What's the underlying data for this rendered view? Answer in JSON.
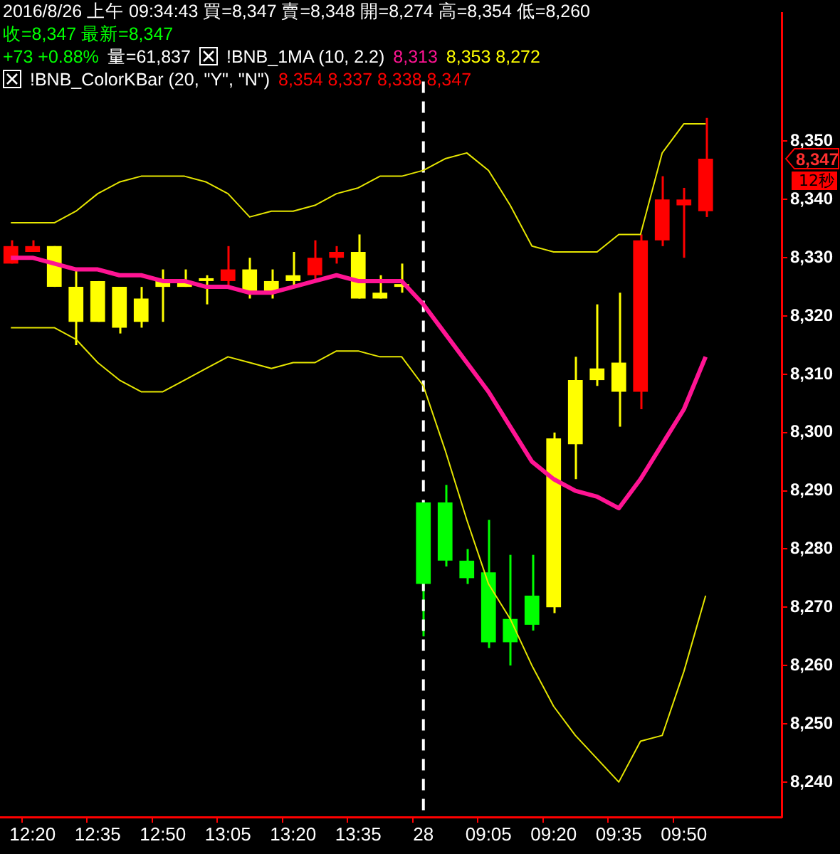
{
  "chart_data": {
    "type": "candlestick",
    "categories": [
      null,
      "12:20",
      null,
      null,
      "12:35",
      null,
      null,
      "12:50",
      null,
      null,
      "13:05",
      null,
      null,
      "13:20",
      null,
      null,
      "13:35",
      null,
      null,
      "28",
      null,
      null,
      "09:05",
      null,
      null,
      "09:20",
      null,
      null,
      "09:35",
      null,
      null,
      "09:50",
      null,
      null,
      null,
      null
    ],
    "ohlc": [
      [
        8329,
        8333,
        8329,
        8332
      ],
      [
        8331,
        8333,
        8331,
        8332
      ],
      [
        8325,
        8332,
        8325,
        8332
      ],
      [
        8319,
        8328,
        8315,
        8325
      ],
      [
        8319,
        8326,
        8319,
        8326
      ],
      [
        8318,
        8325,
        8317,
        8325
      ],
      [
        8319,
        8325,
        8318,
        8323
      ],
      [
        8325,
        8328,
        8319,
        8326
      ],
      [
        8325,
        8328,
        8325,
        8326
      ],
      [
        8326,
        8327,
        8322,
        8326
      ],
      [
        8326,
        8332,
        8325,
        8328
      ],
      [
        8324,
        8330,
        8323,
        8328
      ],
      [
        8324,
        8328,
        8323,
        8326
      ],
      [
        8326,
        8331,
        8325,
        8327
      ],
      [
        8327,
        8333,
        8326,
        8330
      ],
      [
        8330,
        8332,
        8329,
        8331
      ],
      [
        8323,
        8334,
        8323,
        8331
      ],
      [
        8323,
        8327,
        8323,
        8324
      ],
      [
        8325,
        8329,
        8324,
        8325
      ],
      [
        8288,
        8288,
        8265,
        8274
      ],
      [
        8288,
        8291,
        8277,
        8278
      ],
      [
        8278,
        8280,
        8274,
        8275
      ],
      [
        8276,
        8285,
        8263,
        8264
      ],
      [
        8268,
        8279,
        8260,
        8264
      ],
      [
        8272,
        8279,
        8266,
        8267
      ],
      [
        8270,
        8300,
        8269,
        8299
      ],
      [
        8298,
        8313,
        8292,
        8309
      ],
      [
        8309,
        8322,
        8308,
        8311
      ],
      [
        8307,
        8324,
        8301,
        8312
      ],
      [
        8307,
        8334,
        8304,
        8333
      ],
      [
        8333,
        8344,
        8332,
        8340
      ],
      [
        8339,
        8342,
        8330,
        8340
      ],
      [
        8338,
        8354,
        8337,
        8347
      ],
      null,
      null,
      null
    ],
    "colors": [
      "#ff0000",
      "#ff0000",
      "#ffff00",
      "#ffff00",
      "#ffff00",
      "#ffff00",
      "#ffff00",
      "#ffff00",
      "#ffff00",
      "#ffff00",
      "#ff0000",
      "#ffff00",
      "#ffff00",
      "#ffff00",
      "#ff0000",
      "#ff0000",
      "#ffff00",
      "#ffff00",
      "#ffff00",
      "#00ff00",
      "#00ff00",
      "#00ff00",
      "#00ff00",
      "#00ff00",
      "#00ff00",
      "#ffff00",
      "#ffff00",
      "#ffff00",
      "#ffff00",
      "#ff0000",
      "#ff0000",
      "#ff0000",
      "#ff0000",
      null,
      null,
      null
    ],
    "series": [
      {
        "type": "line",
        "color": "#ff1493",
        "values": [
          8330,
          8330,
          8329,
          8328,
          8328,
          8327,
          8327,
          8326,
          8326,
          8325,
          8325,
          8324,
          8324,
          8325,
          8326,
          8327,
          8326,
          8326,
          8326,
          8322,
          8317,
          8312,
          8307,
          8301,
          8295,
          8292,
          8290,
          8289,
          8287,
          8292,
          8298,
          8304,
          8313,
          null,
          null,
          null
        ]
      },
      {
        "type": "line",
        "color": "#e6e600",
        "values": [
          8336,
          8336,
          8336,
          8338,
          8341,
          8343,
          8344,
          8344,
          8344,
          8343,
          8341,
          8337,
          8338,
          8338,
          8339,
          8341,
          8342,
          8344,
          8344,
          8345,
          8347,
          8348,
          8345,
          8339,
          8332,
          8331,
          8331,
          8331,
          8334,
          8334,
          8348,
          8353,
          8353,
          null,
          null,
          null
        ]
      },
      {
        "type": "line",
        "color": "#e6e600",
        "values": [
          8318,
          8318,
          8318,
          8316,
          8312,
          8309,
          8307,
          8307,
          8309,
          8311,
          8313,
          8312,
          8311,
          8312,
          8312,
          8314,
          8314,
          8313,
          8313,
          8308,
          8297,
          8285,
          8274,
          8268,
          8260,
          8253,
          8248,
          8244,
          8240,
          8247,
          8248,
          8259,
          8272,
          null,
          null,
          null
        ]
      }
    ],
    "ylim": [
      8234,
      8372
    ],
    "yticks": [
      {
        "value": 8240,
        "label": "8,240"
      },
      {
        "value": 8250,
        "label": "8,250"
      },
      {
        "value": 8260,
        "label": "8,260"
      },
      {
        "value": 8270,
        "label": "8,270"
      },
      {
        "value": 8280,
        "label": "8,280"
      },
      {
        "value": 8290,
        "label": "8,290"
      },
      {
        "value": 8300,
        "label": "8,300"
      },
      {
        "value": 8310,
        "label": "8,310"
      },
      {
        "value": 8320,
        "label": "8,320"
      },
      {
        "value": 8330,
        "label": "8,330"
      },
      {
        "value": 8340,
        "label": "8,340"
      },
      {
        "value": 8350,
        "label": "8,350"
      }
    ],
    "marker": "none",
    "ref_lines": [
      {
        "axis": "x",
        "value": "28",
        "color": "#ffffff",
        "line_style": "dashed"
      }
    ],
    "annotations": [
      "2016/8/26 上午 09:34:43 買=8,347 賣=8,348 開=8,274 高=8,354 低=8,260",
      "收=8,347 最新=8,347",
      "+73 +0.88%",
      "量=61,837",
      "!BNB_1MA (10, 2.2)",
      "8,313",
      "8,353 8,272",
      "!BNB_ColorKBar (20, \"Y\", \"N\")",
      "8,354 8,337 8,338 8,347",
      "8,347",
      "12秒"
    ]
  }
}
